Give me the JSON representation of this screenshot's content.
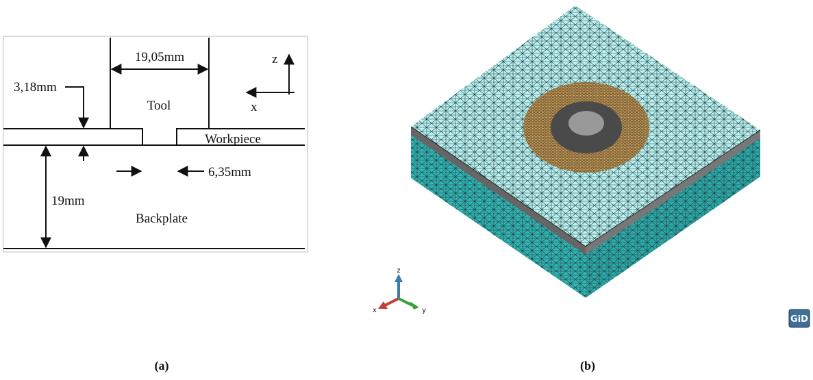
{
  "panel_a": {
    "tool_width": "19,05mm",
    "workpiece_thickness": "3,18mm",
    "tool": "Tool",
    "workpiece": "Workpiece",
    "pin_width": "6,35mm",
    "backplate_thickness": "19mm",
    "backplate": "Backplate",
    "axis_z": "z",
    "axis_x": "x",
    "caption": "(a)"
  },
  "panel_b": {
    "axis_z": "z",
    "axis_x": "x",
    "axis_y": "y",
    "logo": "GiD",
    "caption": "(b)"
  }
}
